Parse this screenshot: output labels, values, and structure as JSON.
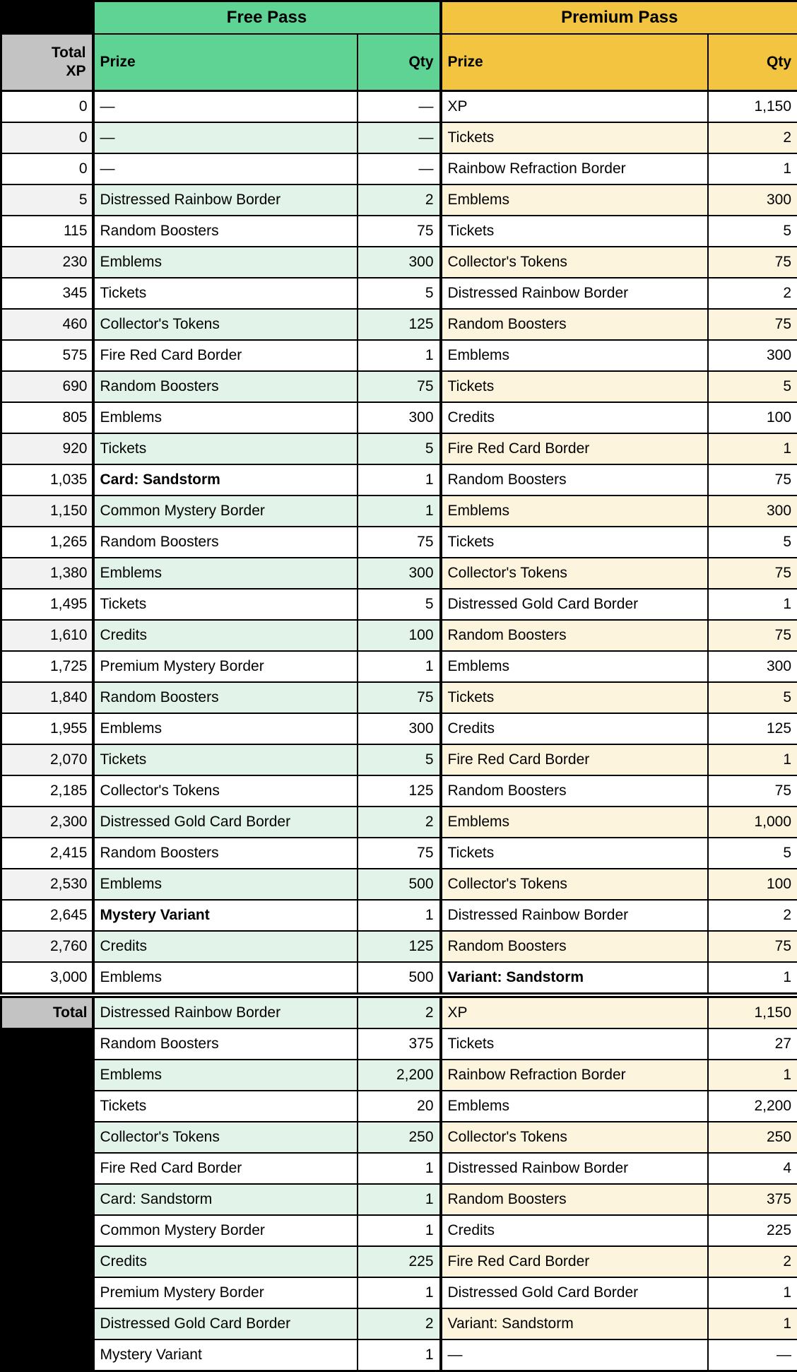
{
  "header": {
    "free_pass": "Free Pass",
    "premium_pass": "Premium Pass",
    "total_xp": "Total\nXP",
    "free_prize": "Prize",
    "free_qty": "Qty",
    "premium_prize": "Prize",
    "premium_qty": "Qty",
    "total_label": "Total"
  },
  "colors": {
    "free_header": "#5FD394",
    "premium_header": "#F3C440",
    "free_row_tint": "#E2F4EA",
    "premium_row_tint": "#FCF4DC",
    "gray_header": "#C3C3C3",
    "xp_row_tint": "#F2F2F2",
    "border": "#000000"
  },
  "main_rows": [
    {
      "xp": "0",
      "fp": "—",
      "fq": "—",
      "pp": "XP",
      "pq": "1,150"
    },
    {
      "xp": "0",
      "fp": "—",
      "fq": "—",
      "pp": "Tickets",
      "pq": "2"
    },
    {
      "xp": "0",
      "fp": "—",
      "fq": "—",
      "pp": "Rainbow Refraction Border",
      "pq": "1"
    },
    {
      "xp": "5",
      "fp": "Distressed Rainbow Border",
      "fq": "2",
      "pp": "Emblems",
      "pq": "300"
    },
    {
      "xp": "115",
      "fp": "Random Boosters",
      "fq": "75",
      "pp": "Tickets",
      "pq": "5"
    },
    {
      "xp": "230",
      "fp": "Emblems",
      "fq": "300",
      "pp": "Collector's Tokens",
      "pq": "75"
    },
    {
      "xp": "345",
      "fp": "Tickets",
      "fq": "5",
      "pp": "Distressed Rainbow Border",
      "pq": "2"
    },
    {
      "xp": "460",
      "fp": "Collector's Tokens",
      "fq": "125",
      "pp": "Random Boosters",
      "pq": "75"
    },
    {
      "xp": "575",
      "fp": "Fire Red Card Border",
      "fq": "1",
      "pp": "Emblems",
      "pq": "300"
    },
    {
      "xp": "690",
      "fp": "Random Boosters",
      "fq": "75",
      "pp": "Tickets",
      "pq": "5"
    },
    {
      "xp": "805",
      "fp": "Emblems",
      "fq": "300",
      "pp": "Credits",
      "pq": "100"
    },
    {
      "xp": "920",
      "fp": "Tickets",
      "fq": "5",
      "pp": "Fire Red Card Border",
      "pq": "1"
    },
    {
      "xp": "1,035",
      "fp": "Card: Sandstorm",
      "fb": true,
      "fq": "1",
      "pp": "Random Boosters",
      "pq": "75"
    },
    {
      "xp": "1,150",
      "fp": "Common Mystery Border",
      "fq": "1",
      "pp": "Emblems",
      "pq": "300"
    },
    {
      "xp": "1,265",
      "fp": "Random Boosters",
      "fq": "75",
      "pp": "Tickets",
      "pq": "5"
    },
    {
      "xp": "1,380",
      "fp": "Emblems",
      "fq": "300",
      "pp": "Collector's Tokens",
      "pq": "75"
    },
    {
      "xp": "1,495",
      "fp": "Tickets",
      "fq": "5",
      "pp": "Distressed Gold Card Border",
      "pq": "1"
    },
    {
      "xp": "1,610",
      "fp": "Credits",
      "fq": "100",
      "pp": "Random Boosters",
      "pq": "75"
    },
    {
      "xp": "1,725",
      "fp": "Premium Mystery Border",
      "fq": "1",
      "pp": "Emblems",
      "pq": "300"
    },
    {
      "xp": "1,840",
      "fp": "Random Boosters",
      "fq": "75",
      "pp": "Tickets",
      "pq": "5"
    },
    {
      "xp": "1,955",
      "fp": "Emblems",
      "fq": "300",
      "pp": "Credits",
      "pq": "125"
    },
    {
      "xp": "2,070",
      "fp": "Tickets",
      "fq": "5",
      "pp": "Fire Red Card Border",
      "pq": "1"
    },
    {
      "xp": "2,185",
      "fp": "Collector's Tokens",
      "fq": "125",
      "pp": "Random Boosters",
      "pq": "75"
    },
    {
      "xp": "2,300",
      "fp": "Distressed Gold Card Border",
      "fq": "2",
      "pp": "Emblems",
      "pq": "1,000"
    },
    {
      "xp": "2,415",
      "fp": "Random Boosters",
      "fq": "75",
      "pp": "Tickets",
      "pq": "5"
    },
    {
      "xp": "2,530",
      "fp": "Emblems",
      "fq": "500",
      "pp": "Collector's Tokens",
      "pq": "100"
    },
    {
      "xp": "2,645",
      "fp": "Mystery Variant",
      "fb": true,
      "fq": "1",
      "pp": "Distressed Rainbow Border",
      "pq": "2"
    },
    {
      "xp": "2,760",
      "fp": "Credits",
      "fq": "125",
      "pp": "Random Boosters",
      "pq": "75"
    },
    {
      "xp": "3,000",
      "fp": "Emblems",
      "fq": "500",
      "pp": "Variant: Sandstorm",
      "pb": true,
      "pq": "1"
    }
  ],
  "total_rows": [
    {
      "label": "Total",
      "fp": "Distressed Rainbow Border",
      "fq": "2",
      "pp": "XP",
      "pq": "1,150"
    },
    {
      "fp": "Random Boosters",
      "fq": "375",
      "pp": "Tickets",
      "pq": "27"
    },
    {
      "fp": "Emblems",
      "fq": "2,200",
      "pp": "Rainbow Refraction Border",
      "pq": "1"
    },
    {
      "fp": "Tickets",
      "fq": "20",
      "pp": "Emblems",
      "pq": "2,200"
    },
    {
      "fp": "Collector's Tokens",
      "fq": "250",
      "pp": "Collector's Tokens",
      "pq": "250"
    },
    {
      "fp": "Fire Red Card Border",
      "fq": "1",
      "pp": "Distressed Rainbow Border",
      "pq": "4"
    },
    {
      "fp": "Card: Sandstorm",
      "fq": "1",
      "pp": "Random Boosters",
      "pq": "375"
    },
    {
      "fp": "Common Mystery Border",
      "fq": "1",
      "pp": "Credits",
      "pq": "225"
    },
    {
      "fp": "Credits",
      "fq": "225",
      "pp": "Fire Red Card Border",
      "pq": "2"
    },
    {
      "fp": "Premium Mystery Border",
      "fq": "1",
      "pp": "Distressed Gold Card Border",
      "pq": "1"
    },
    {
      "fp": "Distressed Gold Card Border",
      "fq": "2",
      "pp": "Variant: Sandstorm",
      "pq": "1"
    },
    {
      "fp": "Mystery Variant",
      "fq": "1",
      "pp": "—",
      "pq": "—"
    }
  ]
}
